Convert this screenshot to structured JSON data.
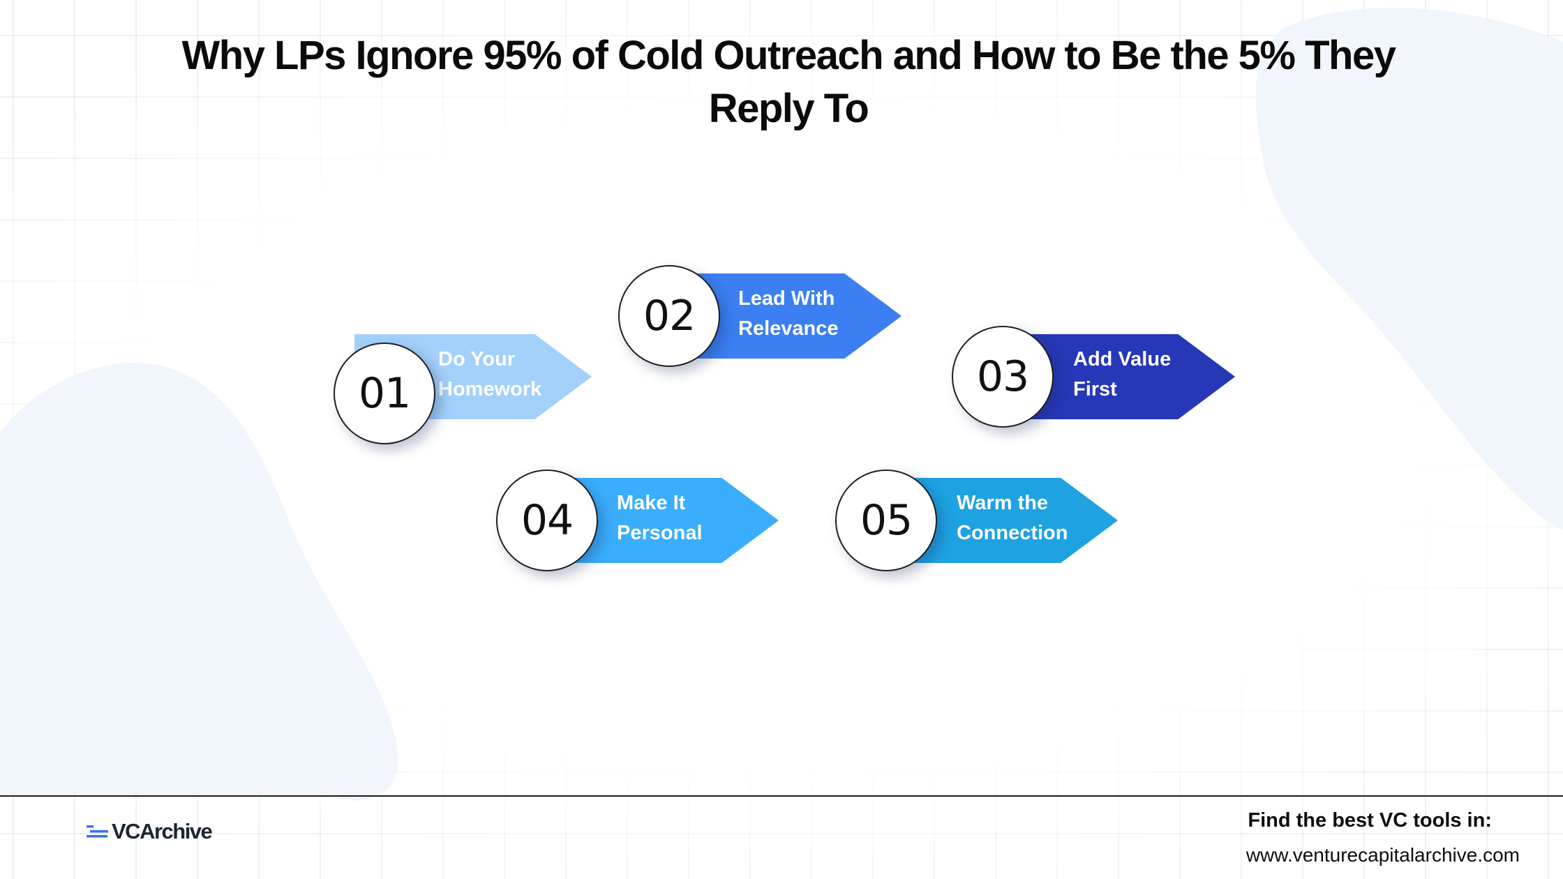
{
  "title": "Why LPs Ignore 95% of Cold Outreach and  How to Be the 5% They Reply To",
  "steps": [
    {
      "number": "01",
      "line1": "Do Your",
      "line2": "Homework",
      "color": "#a3d0fb"
    },
    {
      "number": "02",
      "line1": "Lead With",
      "line2": "Relevance",
      "color": "#3b7ff2"
    },
    {
      "number": "03",
      "line1": "Add Value",
      "line2": "First",
      "color": "#2637b8"
    },
    {
      "number": "04",
      "line1": "Make It",
      "line2": "Personal",
      "color": "#3aaefc"
    },
    {
      "number": "05",
      "line1": "Warm the",
      "line2": "Connection",
      "color": "#1ea2e2"
    }
  ],
  "footer": {
    "logo_text": "VCArchive",
    "tagline": "Find the best VC tools in:",
    "url": "www.venturecapitalarchive.com"
  },
  "colors": {
    "background": "#ffffff",
    "title": "#0b0b0b",
    "logo_accent": "#3b6df6"
  }
}
